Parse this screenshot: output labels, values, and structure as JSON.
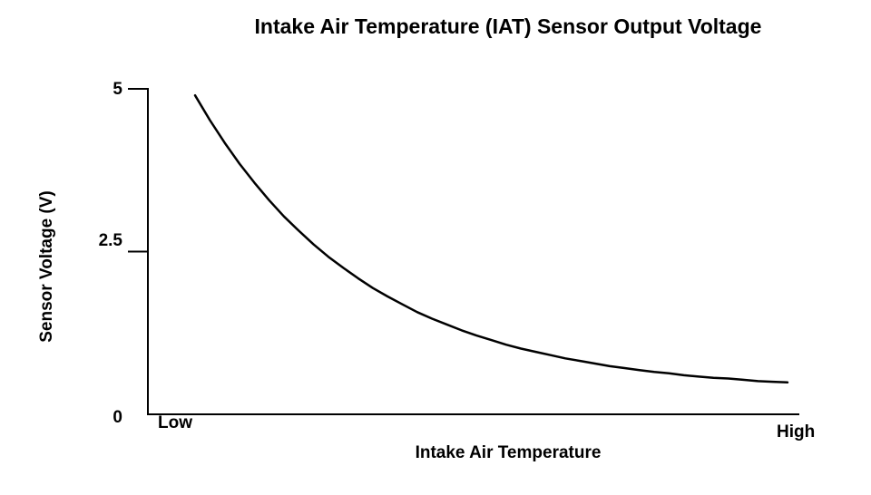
{
  "page": {
    "background": "#ffffff",
    "line_color": "#000000"
  },
  "chart_data": {
    "type": "line",
    "title": "Intake Air Temperature (IAT) Sensor Output Voltage",
    "xlabel": "Intake Air Temperature",
    "ylabel": "Sensor Voltage (V)",
    "x_tick_labels": [
      "Low",
      "High"
    ],
    "y_ticks": [
      {
        "label": "0",
        "value": 0
      },
      {
        "label": "2.5",
        "value": 2.5
      },
      {
        "label": "5",
        "value": 5
      }
    ],
    "ylim": [
      0,
      5
    ],
    "xlim": [
      0,
      1
    ],
    "grid": false,
    "legend": "none",
    "line_color": "#000000",
    "series": [
      {
        "name": "IAT sensor output voltage",
        "x": [
          0,
          0.025,
          0.05,
          0.075,
          0.1,
          0.125,
          0.15,
          0.175,
          0.2,
          0.225,
          0.25,
          0.275,
          0.3,
          0.325,
          0.35,
          0.375,
          0.4,
          0.425,
          0.45,
          0.475,
          0.5,
          0.525,
          0.55,
          0.575,
          0.6,
          0.625,
          0.65,
          0.675,
          0.7,
          0.725,
          0.75,
          0.775,
          0.8,
          0.825,
          0.85,
          0.875,
          0.9,
          0.925,
          0.95,
          0.975,
          1.0
        ],
        "y": [
          4.9,
          4.52,
          4.17,
          3.85,
          3.56,
          3.29,
          3.04,
          2.82,
          2.61,
          2.42,
          2.25,
          2.09,
          1.94,
          1.81,
          1.69,
          1.57,
          1.47,
          1.38,
          1.29,
          1.21,
          1.14,
          1.07,
          1.01,
          0.96,
          0.91,
          0.86,
          0.82,
          0.78,
          0.74,
          0.71,
          0.68,
          0.65,
          0.63,
          0.6,
          0.58,
          0.56,
          0.55,
          0.53,
          0.51,
          0.5,
          0.49
        ]
      }
    ]
  }
}
